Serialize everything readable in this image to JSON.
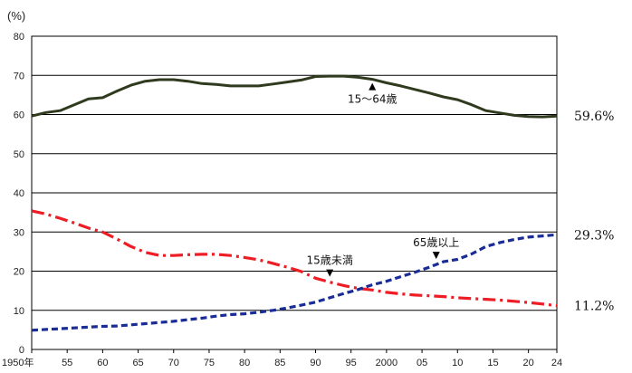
{
  "chart_data": {
    "type": "line",
    "unit_label": "(%)",
    "title": "",
    "xlabel": "",
    "ylabel": "",
    "xlim": [
      1950,
      2024
    ],
    "ylim": [
      0,
      80
    ],
    "grid": true,
    "y_ticks": [
      0,
      10,
      20,
      30,
      40,
      50,
      60,
      70,
      80
    ],
    "x_ticks": [
      {
        "x": 1950,
        "label": "1950年"
      },
      {
        "x": 1955,
        "label": "55"
      },
      {
        "x": 1960,
        "label": "60"
      },
      {
        "x": 1965,
        "label": "65"
      },
      {
        "x": 1970,
        "label": "70"
      },
      {
        "x": 1975,
        "label": "75"
      },
      {
        "x": 1980,
        "label": "80"
      },
      {
        "x": 1985,
        "label": "85"
      },
      {
        "x": 1990,
        "label": "90"
      },
      {
        "x": 1995,
        "label": "95"
      },
      {
        "x": 2000,
        "label": "2000"
      },
      {
        "x": 2005,
        "label": "05"
      },
      {
        "x": 2010,
        "label": "10"
      },
      {
        "x": 2015,
        "label": "15"
      },
      {
        "x": 2020,
        "label": "20"
      },
      {
        "x": 2024,
        "label": "24"
      }
    ],
    "series": [
      {
        "name": "15～64歳",
        "color": "#2f3a1e",
        "style": "solid",
        "end_label": "59.6%",
        "annotation_x": 1998,
        "x": [
          1950,
          1952,
          1954,
          1956,
          1958,
          1960,
          1962,
          1964,
          1966,
          1968,
          1970,
          1972,
          1974,
          1976,
          1978,
          1980,
          1982,
          1984,
          1986,
          1988,
          1990,
          1992,
          1994,
          1996,
          1998,
          2000,
          2002,
          2004,
          2006,
          2008,
          2010,
          2012,
          2014,
          2016,
          2018,
          2020,
          2022,
          2024
        ],
        "values": [
          59.6,
          60.5,
          61.0,
          62.5,
          64.0,
          64.3,
          66.0,
          67.5,
          68.5,
          68.9,
          68.9,
          68.5,
          67.9,
          67.7,
          67.3,
          67.3,
          67.3,
          67.8,
          68.3,
          68.8,
          69.7,
          69.8,
          69.8,
          69.5,
          69.0,
          68.1,
          67.3,
          66.4,
          65.5,
          64.5,
          63.8,
          62.5,
          61.0,
          60.4,
          59.8,
          59.5,
          59.4,
          59.6
        ]
      },
      {
        "name": "15歳未満",
        "color": "#ee1c24",
        "style": "dashdot",
        "end_label": "11.2%",
        "annotation_x": 1992,
        "x": [
          1950,
          1952,
          1954,
          1956,
          1958,
          1960,
          1962,
          1964,
          1966,
          1968,
          1970,
          1972,
          1974,
          1976,
          1978,
          1980,
          1982,
          1984,
          1986,
          1988,
          1990,
          1992,
          1994,
          1996,
          1998,
          2000,
          2002,
          2004,
          2006,
          2008,
          2010,
          2012,
          2014,
          2016,
          2018,
          2020,
          2022,
          2024
        ],
        "values": [
          35.4,
          34.6,
          33.5,
          32.3,
          31.0,
          30.0,
          28.2,
          26.3,
          24.8,
          24.0,
          24.0,
          24.2,
          24.3,
          24.3,
          24.0,
          23.5,
          22.9,
          22.0,
          21.0,
          19.9,
          18.2,
          17.2,
          16.3,
          15.6,
          15.2,
          14.6,
          14.2,
          13.9,
          13.7,
          13.5,
          13.2,
          13.0,
          12.8,
          12.6,
          12.3,
          12.0,
          11.6,
          11.2
        ]
      },
      {
        "name": "65歳以上",
        "color": "#1a2d96",
        "style": "dash",
        "end_label": "29.3%",
        "annotation_x": 2007,
        "x": [
          1950,
          1952,
          1954,
          1956,
          1958,
          1960,
          1962,
          1964,
          1966,
          1968,
          1970,
          1972,
          1974,
          1976,
          1978,
          1980,
          1982,
          1984,
          1986,
          1988,
          1990,
          1992,
          1994,
          1996,
          1998,
          2000,
          2002,
          2004,
          2006,
          2008,
          2010,
          2012,
          2014,
          2016,
          2018,
          2020,
          2022,
          2024
        ],
        "values": [
          4.9,
          5.1,
          5.3,
          5.5,
          5.7,
          5.9,
          6.0,
          6.3,
          6.6,
          6.9,
          7.2,
          7.6,
          8.0,
          8.5,
          8.9,
          9.1,
          9.5,
          10.0,
          10.6,
          11.3,
          12.1,
          13.2,
          14.3,
          15.3,
          16.5,
          17.4,
          18.6,
          19.7,
          21.0,
          22.4,
          23.0,
          24.4,
          26.3,
          27.3,
          28.1,
          28.7,
          29.0,
          29.3
        ]
      }
    ]
  }
}
